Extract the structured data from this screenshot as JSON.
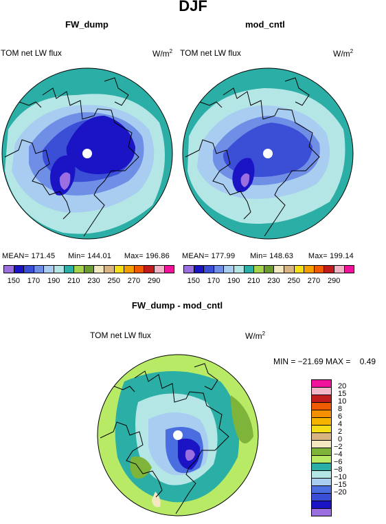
{
  "title": "DJF",
  "panels": [
    {
      "name": "FW_dump",
      "label": "TOM net LW flux",
      "unit": "W/m",
      "unit_sup": "2",
      "stats": {
        "mean": "MEAN= 171.45",
        "min": "Min= 144.01",
        "max": "Max= 196.86"
      }
    },
    {
      "name": "mod_cntl",
      "label": "TOM net LW flux",
      "unit": "W/m",
      "unit_sup": "2",
      "stats": {
        "mean": "MEAN= 177.99",
        "min": "Min= 148.63",
        "max": "Max= 199.14"
      }
    }
  ],
  "abs_colorbar": {
    "colors": [
      "#9b6fe0",
      "#1a14c4",
      "#3b4fd6",
      "#6f8ee6",
      "#a8cdf0",
      "#b5e6e6",
      "#2aaea5",
      "#a8d34c",
      "#6a9d2e",
      "#f4e8c0",
      "#d8b483",
      "#f7dd18",
      "#f5a000",
      "#f05b00",
      "#c21b1b",
      "#f2b5c8",
      "#f0129a"
    ],
    "ticks": [
      "150",
      "170",
      "190",
      "210",
      "230",
      "250",
      "270",
      "290"
    ]
  },
  "diff_panel": {
    "title": "FW_dump - mod_cntl",
    "label": "TOM net LW flux",
    "unit": "W/m",
    "unit_sup": "2",
    "stats": "MIN = −21.69 MAX =    0.49"
  },
  "diff_colorbar": {
    "colors": [
      "#f0129a",
      "#f2b5c8",
      "#c21b1b",
      "#f05b00",
      "#f59000",
      "#f5b400",
      "#f7dd18",
      "#d8b483",
      "#f4e8c0",
      "#7fb43a",
      "#b9ea66",
      "#2aaea5",
      "#b5e6e6",
      "#a8cdf0",
      "#4a6de0",
      "#3b4fd6",
      "#1a14c4",
      "#9b6fe0"
    ],
    "ticks": [
      "20",
      "15",
      "10",
      "8",
      "6",
      "4",
      "2",
      "0",
      "−2",
      "−4",
      "−6",
      "−8",
      "−10",
      "−15",
      "−20"
    ]
  }
}
